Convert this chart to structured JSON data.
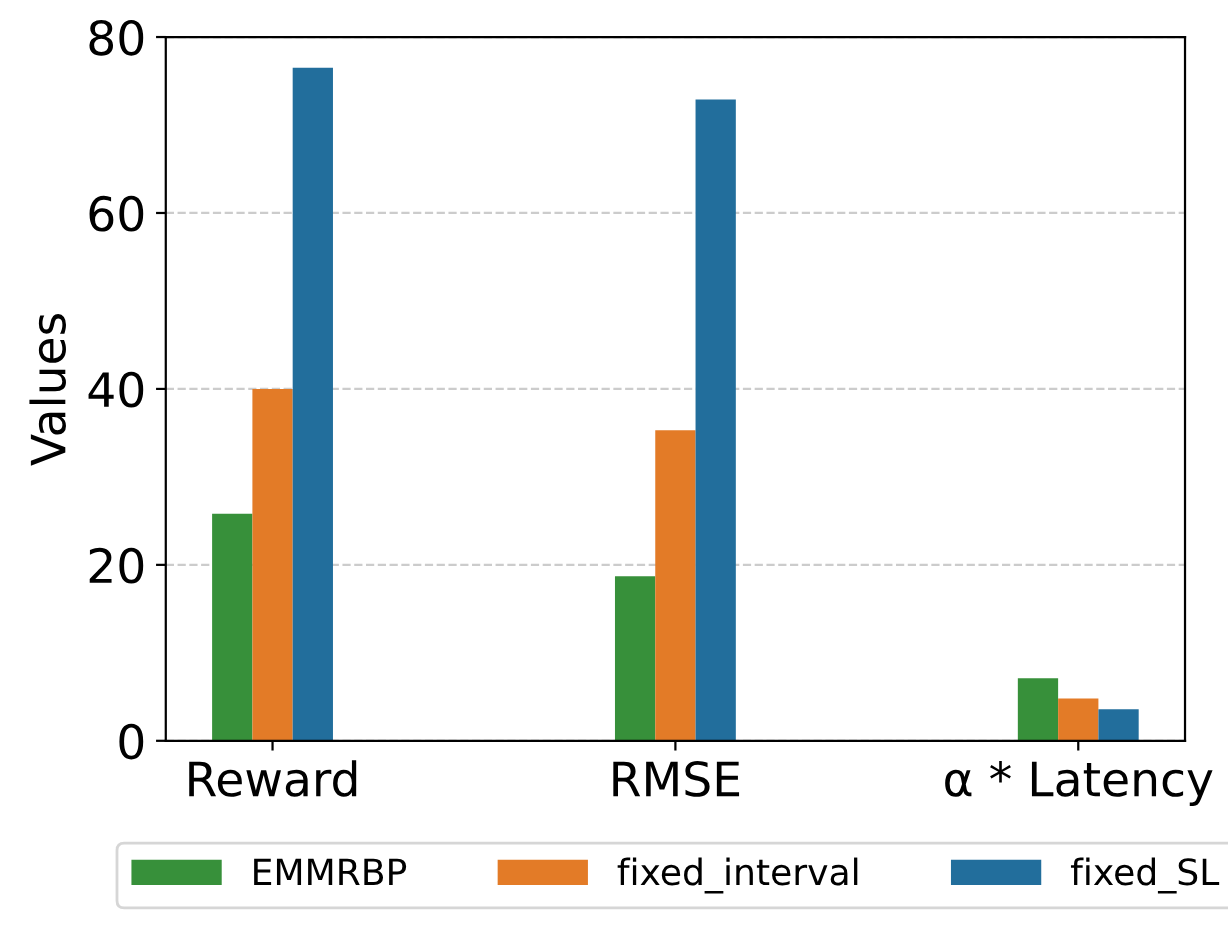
{
  "chart_data": {
    "type": "bar",
    "ylabel": "Values",
    "categories": [
      "Reward",
      "RMSE",
      "α * Latency"
    ],
    "series": [
      {
        "name": "EMMRBP",
        "color": "#37903a",
        "values": [
          25.8,
          18.7,
          7.1
        ]
      },
      {
        "name": "fixed_interval",
        "color": "#e37b27",
        "values": [
          40.0,
          35.3,
          4.8
        ]
      },
      {
        "name": "fixed_SL",
        "color": "#226e9c",
        "values": [
          76.5,
          72.9,
          3.6
        ]
      }
    ],
    "ylim": [
      0,
      80
    ],
    "yticks": [
      0,
      20,
      40,
      60,
      80
    ],
    "grid": "y",
    "legend": "bottom"
  }
}
